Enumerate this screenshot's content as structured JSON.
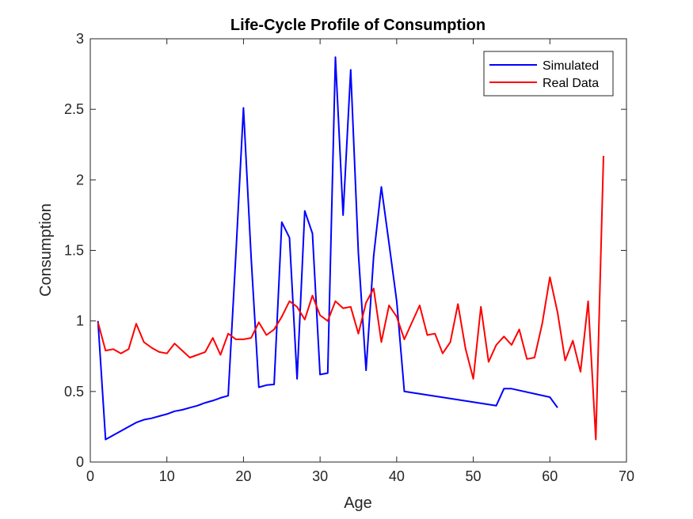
{
  "chart_data": {
    "type": "line",
    "title": "Life-Cycle Profile of Consumption",
    "xlabel": "Age",
    "ylabel": "Consumption",
    "xlim": [
      0,
      70
    ],
    "ylim": [
      0,
      3
    ],
    "xticks": [
      0,
      10,
      20,
      30,
      40,
      50,
      60,
      70
    ],
    "yticks": [
      0,
      0.5,
      1,
      1.5,
      2,
      2.5,
      3
    ],
    "xtick_labels": [
      "0",
      "10",
      "20",
      "30",
      "40",
      "50",
      "60",
      "70"
    ],
    "ytick_labels": [
      "0",
      "0.5",
      "1",
      "1.5",
      "2",
      "2.5",
      "3"
    ],
    "grid": false,
    "legend_position": "top-right",
    "series": [
      {
        "name": "Simulated",
        "color": "#0000ff",
        "x": [
          1,
          2,
          3,
          4,
          5,
          6,
          7,
          8,
          9,
          10,
          11,
          12,
          13,
          14,
          15,
          16,
          17,
          18,
          19,
          20,
          21,
          22,
          23,
          24,
          25,
          26,
          27,
          28,
          29,
          30,
          31,
          32,
          33,
          34,
          35,
          36,
          37,
          38,
          39,
          40,
          41,
          53,
          54,
          55,
          60,
          61
        ],
        "y": [
          1.0,
          0.16,
          0.19,
          0.22,
          0.25,
          0.28,
          0.3,
          0.31,
          0.325,
          0.34,
          0.36,
          0.37,
          0.385,
          0.4,
          0.42,
          0.435,
          0.455,
          0.47,
          1.47,
          2.51,
          1.45,
          0.53,
          0.545,
          0.55,
          1.7,
          1.59,
          0.59,
          1.78,
          1.62,
          0.62,
          0.63,
          2.87,
          1.75,
          2.78,
          1.48,
          0.65,
          1.46,
          1.95,
          1.55,
          1.14,
          0.5,
          0.4,
          0.52,
          0.52,
          0.46,
          0.385
        ]
      },
      {
        "name": "Real Data",
        "color": "#ff0000",
        "x": [
          1,
          2,
          3,
          4,
          5,
          6,
          7,
          8,
          9,
          10,
          11,
          12,
          13,
          14,
          15,
          16,
          17,
          18,
          19,
          20,
          21,
          22,
          23,
          24,
          25,
          26,
          27,
          28,
          29,
          30,
          31,
          32,
          33,
          34,
          35,
          36,
          37,
          38,
          39,
          40,
          41,
          42,
          43,
          44,
          45,
          46,
          47,
          48,
          49,
          50,
          51,
          52,
          53,
          54,
          55,
          56,
          57,
          58,
          59,
          60,
          61,
          62,
          63,
          64,
          65,
          66,
          67
        ],
        "y": [
          0.99,
          0.79,
          0.8,
          0.77,
          0.8,
          0.98,
          0.85,
          0.81,
          0.78,
          0.77,
          0.84,
          0.79,
          0.74,
          0.76,
          0.78,
          0.88,
          0.76,
          0.91,
          0.87,
          0.87,
          0.88,
          0.99,
          0.9,
          0.94,
          1.03,
          1.14,
          1.1,
          1.01,
          1.18,
          1.04,
          1.0,
          1.14,
          1.09,
          1.1,
          0.91,
          1.13,
          1.23,
          0.85,
          1.11,
          1.03,
          0.87,
          0.99,
          1.11,
          0.9,
          0.91,
          0.77,
          0.85,
          1.12,
          0.8,
          0.59,
          1.1,
          0.71,
          0.83,
          0.89,
          0.83,
          0.94,
          0.73,
          0.74,
          0.98,
          1.31,
          1.06,
          0.72,
          0.86,
          0.64,
          1.14,
          0.16,
          2.17
        ]
      }
    ]
  }
}
